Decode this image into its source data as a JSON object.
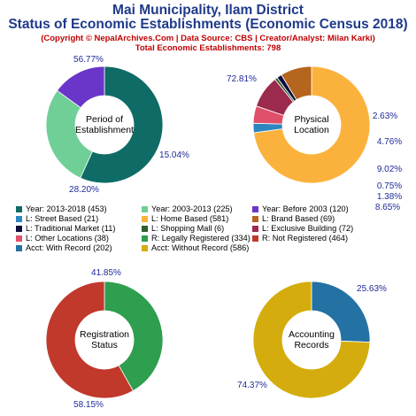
{
  "header": {
    "title_line1": "Mai Municipality, Ilam District",
    "title_line2": "Status of Economic Establishments (Economic Census 2018)",
    "copyright": "(Copyright © NepalArchives.Com | Data Source: CBS | Creator/Analyst: Milan Karki)",
    "total": "Total Economic Establishments: 798"
  },
  "chart_data": [
    {
      "type": "pie",
      "title": "Period of Establishment",
      "center_label": [
        "Period of",
        "Establishment"
      ],
      "slices": [
        {
          "label": "Year: 2013-2018",
          "value": 453,
          "pct": "56.77%",
          "color": "#0f6b66"
        },
        {
          "label": "Year: 2003-2013",
          "value": 225,
          "pct": "28.20%",
          "color": "#6fcf97"
        },
        {
          "label": "Year: Before 2003",
          "value": 120,
          "pct": "15.04%",
          "color": "#6a35c9"
        }
      ]
    },
    {
      "type": "pie",
      "title": "Physical Location",
      "center_label": [
        "Physical",
        "Location"
      ],
      "slices": [
        {
          "label": "L: Home Based",
          "value": 581,
          "pct": "72.81%",
          "color": "#fbb23c"
        },
        {
          "label": "L: Street Based",
          "value": 21,
          "pct": "2.63%",
          "color": "#2e86c1"
        },
        {
          "label": "L: Other Locations",
          "value": 38,
          "pct": "4.76%",
          "color": "#e0506b"
        },
        {
          "label": "L: Exclusive Building",
          "value": 72,
          "pct": "9.02%",
          "color": "#9c2a4c"
        },
        {
          "label": "L: Shopping Mall",
          "value": 6,
          "pct": "0.75%",
          "color": "#2f5f2f"
        },
        {
          "label": "L: Traditional Market",
          "value": 11,
          "pct": "1.38%",
          "color": "#0c0c3c"
        },
        {
          "label": "L: Brand Based",
          "value": 69,
          "pct": "8.65%",
          "color": "#b5651d"
        }
      ]
    },
    {
      "type": "pie",
      "title": "Registration Status",
      "center_label": [
        "Registration",
        "Status"
      ],
      "slices": [
        {
          "label": "R: Legally Registered",
          "value": 334,
          "pct": "41.85%",
          "color": "#2e9e4f"
        },
        {
          "label": "R: Not Registered",
          "value": 464,
          "pct": "58.15%",
          "color": "#c0392b"
        }
      ]
    },
    {
      "type": "pie",
      "title": "Accounting Records",
      "center_label": [
        "Accounting",
        "Records"
      ],
      "slices": [
        {
          "label": "Acct: With Record",
          "value": 202,
          "pct": "25.63%",
          "color": "#2471a3"
        },
        {
          "label": "Acct: Without Record",
          "value": 586,
          "pct": "74.37%",
          "color": "#d4ac0d"
        }
      ]
    }
  ],
  "legend": [
    {
      "text": "Year: 2013-2018 (453)",
      "color": "#0f6b66"
    },
    {
      "text": "Year: 2003-2013 (225)",
      "color": "#6fcf97"
    },
    {
      "text": "Year: Before 2003 (120)",
      "color": "#6a35c9"
    },
    {
      "text": "L: Street Based (21)",
      "color": "#2e86c1"
    },
    {
      "text": "L: Home Based (581)",
      "color": "#fbb23c"
    },
    {
      "text": "L: Brand Based (69)",
      "color": "#b5651d"
    },
    {
      "text": "L: Traditional Market (11)",
      "color": "#0c0c3c"
    },
    {
      "text": "L: Shopping Mall (6)",
      "color": "#2f5f2f"
    },
    {
      "text": "L: Exclusive Building (72)",
      "color": "#9c2a4c"
    },
    {
      "text": "L: Other Locations (38)",
      "color": "#e0506b"
    },
    {
      "text": "R: Legally Registered (334)",
      "color": "#2e9e4f"
    },
    {
      "text": "R: Not Registered (464)",
      "color": "#c0392b"
    },
    {
      "text": "Acct: With Record (202)",
      "color": "#2471a3"
    },
    {
      "text": "Acct: Without Record (586)",
      "color": "#d4ac0d"
    }
  ]
}
